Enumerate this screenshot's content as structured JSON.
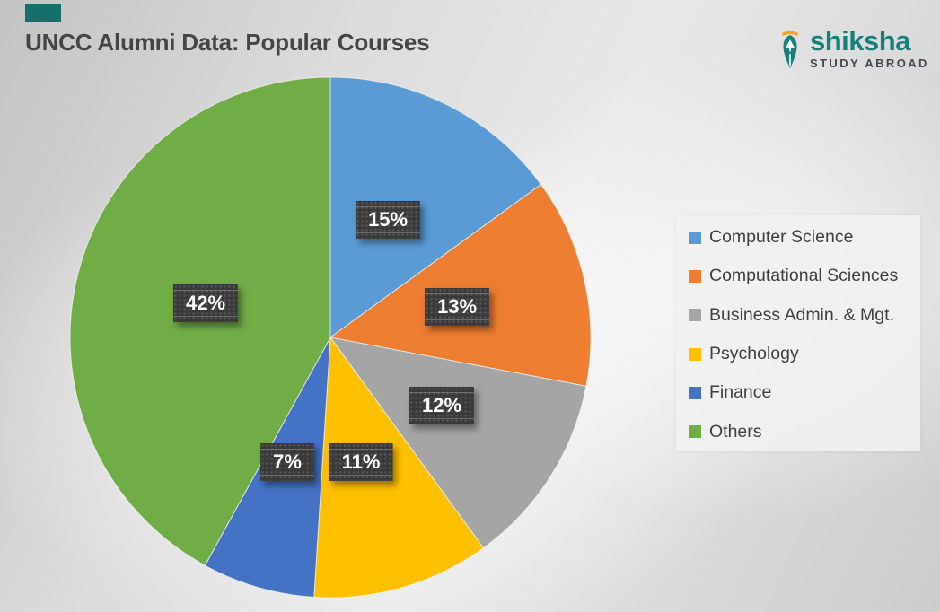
{
  "page": {
    "title": "UNCC Alumni Data: Popular Courses"
  },
  "logo": {
    "brand": "shiksha",
    "tagline": "STUDY ABROAD",
    "brand_color": "#17807A",
    "tagline_color": "#45494E",
    "nib_color": "#17807A",
    "swoosh_color": "#F0A41E"
  },
  "accent_bar_color": "#156F6A",
  "chart_data": {
    "type": "pie",
    "title": "UNCC Alumni Data: Popular Courses",
    "categories": [
      "Computer Science",
      "Computational Sciences",
      "Business Admin. & Mgt.",
      "Psychology",
      "Finance",
      "Others"
    ],
    "values": [
      15,
      13,
      12,
      11,
      7,
      42
    ],
    "labels": [
      "15%",
      "13%",
      "12%",
      "11%",
      "7%",
      "42%"
    ],
    "colors": [
      "#5B9BD5",
      "#ED7D31",
      "#A5A5A5",
      "#FFC000",
      "#4472C4",
      "#70AD47"
    ],
    "start_angle_deg": 0,
    "direction": "clockwise",
    "legend_position": "right",
    "data_labels": "percent",
    "label_text_color": "#FFFFFF",
    "label_box_color": "#3A3A3A"
  }
}
